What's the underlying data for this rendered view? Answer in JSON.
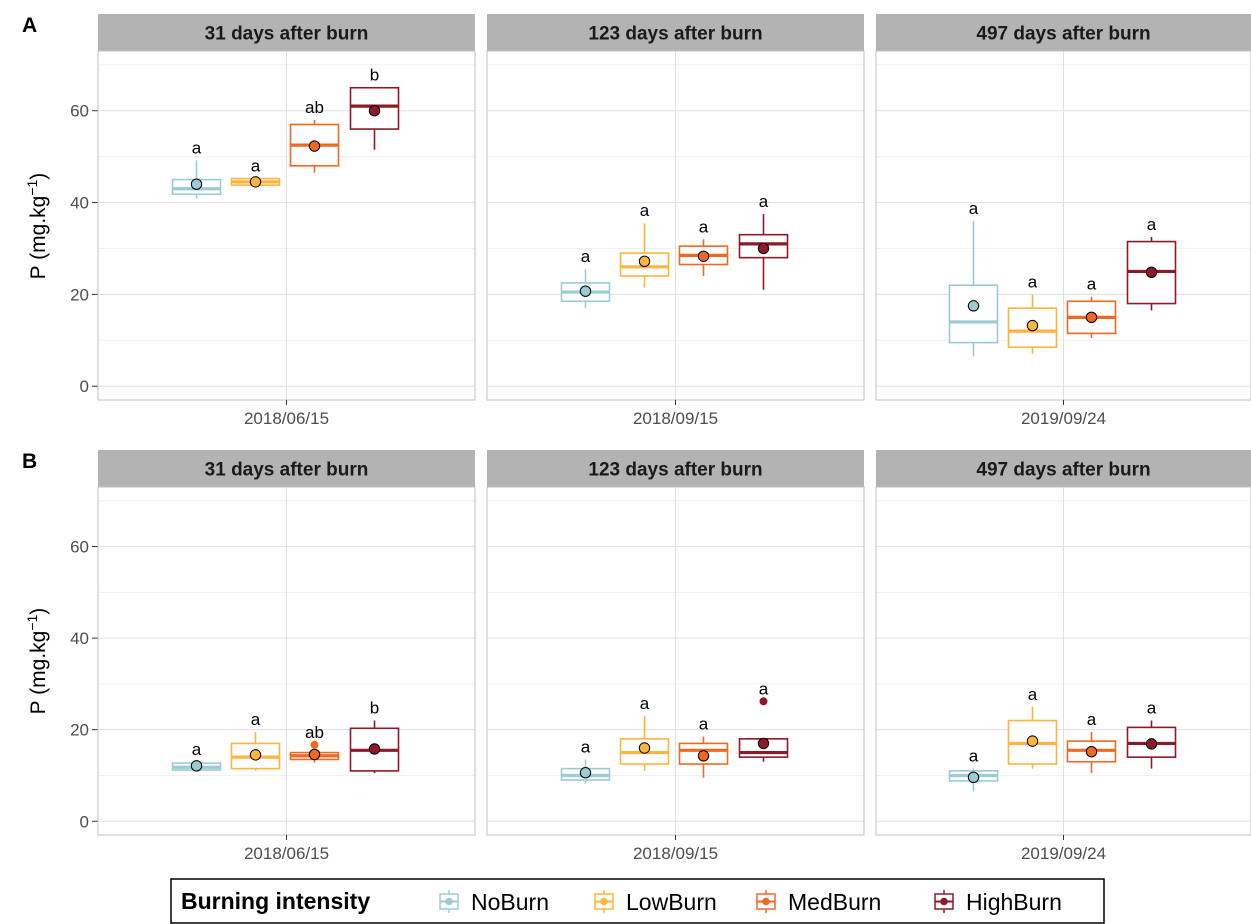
{
  "chart_data": {
    "type": "box",
    "legend": {
      "title": "Burning intensity",
      "position": "bottom",
      "entries": [
        "NoBurn",
        "LowBurn",
        "MedBurn",
        "HighBurn"
      ]
    },
    "colors": {
      "NoBurn": "#9ccbd6",
      "LowBurn": "#fdb53d",
      "MedBurn": "#ee6a24",
      "HighBurn": "#8c1a2b",
      "strip": "#b3b3b3",
      "grid": "#e0e0e0",
      "panel_border": "#c0c0c0"
    },
    "ylim": [
      -3,
      73
    ],
    "y_ticks": [
      0,
      20,
      40,
      60
    ],
    "grid": true,
    "rows": [
      {
        "tag": "A",
        "ylabel": "P (mg.kg",
        "ylabel_sup": "−1",
        "ylabel_end": ")",
        "panels": [
          {
            "title": "31 days after burn",
            "x_label": "2018/06/15",
            "groups": [
              {
                "name": "NoBurn",
                "min": 40.8,
                "q1": 41.8,
                "median": 43.0,
                "q3": 45.0,
                "max": 49.2,
                "mean": 44.0,
                "label": "a",
                "outliers": []
              },
              {
                "name": "LowBurn",
                "min": 43.8,
                "q1": 43.8,
                "median": 44.5,
                "q3": 45.2,
                "max": 45.2,
                "mean": 44.5,
                "label": "a",
                "outliers": []
              },
              {
                "name": "MedBurn",
                "min": 46.5,
                "q1": 48.0,
                "median": 52.5,
                "q3": 57.0,
                "max": 58.0,
                "mean": 52.3,
                "label": "ab",
                "outliers": []
              },
              {
                "name": "HighBurn",
                "min": 51.5,
                "q1": 56.0,
                "median": 61.0,
                "q3": 65.0,
                "max": 65.0,
                "mean": 60.0,
                "label": "b",
                "outliers": []
              }
            ]
          },
          {
            "title": "123 days after burn",
            "x_label": "2018/09/15",
            "groups": [
              {
                "name": "NoBurn",
                "min": 17.0,
                "q1": 18.5,
                "median": 20.5,
                "q3": 22.5,
                "max": 25.5,
                "mean": 20.7,
                "label": "a",
                "outliers": []
              },
              {
                "name": "LowBurn",
                "min": 21.5,
                "q1": 24.0,
                "median": 26.0,
                "q3": 29.0,
                "max": 35.5,
                "mean": 27.2,
                "label": "a",
                "outliers": []
              },
              {
                "name": "MedBurn",
                "min": 24.0,
                "q1": 26.5,
                "median": 28.5,
                "q3": 30.5,
                "max": 32.0,
                "mean": 28.3,
                "label": "a",
                "outliers": []
              },
              {
                "name": "HighBurn",
                "min": 21.0,
                "q1": 28.0,
                "median": 31.0,
                "q3": 33.0,
                "max": 37.5,
                "mean": 30.0,
                "label": "a",
                "outliers": []
              }
            ]
          },
          {
            "title": "497 days after burn",
            "x_label": "2019/09/24",
            "groups": [
              {
                "name": "NoBurn",
                "min": 6.5,
                "q1": 9.5,
                "median": 14.0,
                "q3": 22.0,
                "max": 36.0,
                "mean": 17.5,
                "label": "a",
                "outliers": []
              },
              {
                "name": "LowBurn",
                "min": 7.0,
                "q1": 8.5,
                "median": 12.0,
                "q3": 17.0,
                "max": 20.0,
                "mean": 13.2,
                "label": "a",
                "outliers": []
              },
              {
                "name": "MedBurn",
                "min": 10.5,
                "q1": 11.5,
                "median": 15.0,
                "q3": 18.5,
                "max": 19.5,
                "mean": 15.0,
                "label": "a",
                "outliers": []
              },
              {
                "name": "HighBurn",
                "min": 16.5,
                "q1": 18.0,
                "median": 25.0,
                "q3": 31.5,
                "max": 32.5,
                "mean": 24.8,
                "label": "a",
                "outliers": []
              }
            ]
          }
        ]
      },
      {
        "tag": "B",
        "ylabel": "P (mg.kg",
        "ylabel_sup": "−1",
        "ylabel_end": ")",
        "panels": [
          {
            "title": "31 days after burn",
            "x_label": "2018/06/15",
            "groups": [
              {
                "name": "NoBurn",
                "min": 11.0,
                "q1": 11.2,
                "median": 11.8,
                "q3": 12.7,
                "max": 12.9,
                "mean": 12.1,
                "label": "a",
                "outliers": []
              },
              {
                "name": "LowBurn",
                "min": 11.0,
                "q1": 11.5,
                "median": 14.0,
                "q3": 17.0,
                "max": 19.5,
                "mean": 14.5,
                "label": "a",
                "outliers": []
              },
              {
                "name": "MedBurn",
                "min": 12.8,
                "q1": 13.5,
                "median": 14.3,
                "q3": 15.0,
                "max": 15.2,
                "mean": 14.6,
                "label": "ab",
                "outliers": [
                  16.7
                ]
              },
              {
                "name": "HighBurn",
                "min": 10.5,
                "q1": 11.0,
                "median": 15.5,
                "q3": 20.3,
                "max": 22.0,
                "mean": 15.8,
                "label": "b",
                "outliers": []
              }
            ]
          },
          {
            "title": "123 days after burn",
            "x_label": "2018/09/15",
            "groups": [
              {
                "name": "NoBurn",
                "min": 8.2,
                "q1": 9.0,
                "median": 10.0,
                "q3": 11.5,
                "max": 13.5,
                "mean": 10.6,
                "label": "a",
                "outliers": []
              },
              {
                "name": "LowBurn",
                "min": 11.0,
                "q1": 12.5,
                "median": 15.0,
                "q3": 18.0,
                "max": 23.0,
                "mean": 16.0,
                "label": "a",
                "outliers": []
              },
              {
                "name": "MedBurn",
                "min": 9.5,
                "q1": 12.5,
                "median": 15.5,
                "q3": 17.0,
                "max": 18.5,
                "mean": 14.3,
                "label": "a",
                "outliers": []
              },
              {
                "name": "HighBurn",
                "min": 13.0,
                "q1": 14.0,
                "median": 15.0,
                "q3": 18.0,
                "max": 18.0,
                "mean": 17.0,
                "label": "a",
                "outliers": [
                  26.2
                ]
              }
            ]
          },
          {
            "title": "497 days after burn",
            "x_label": "2019/09/24",
            "groups": [
              {
                "name": "NoBurn",
                "min": 6.5,
                "q1": 8.8,
                "median": 10.0,
                "q3": 11.0,
                "max": 11.5,
                "mean": 9.6,
                "label": "a",
                "outliers": []
              },
              {
                "name": "LowBurn",
                "min": 11.5,
                "q1": 12.5,
                "median": 17.0,
                "q3": 22.0,
                "max": 25.0,
                "mean": 17.5,
                "label": "a",
                "outliers": []
              },
              {
                "name": "MedBurn",
                "min": 10.5,
                "q1": 13.0,
                "median": 15.5,
                "q3": 17.5,
                "max": 19.5,
                "mean": 15.2,
                "label": "a",
                "outliers": []
              },
              {
                "name": "HighBurn",
                "min": 11.5,
                "q1": 14.0,
                "median": 17.0,
                "q3": 20.5,
                "max": 22.0,
                "mean": 16.9,
                "label": "a",
                "outliers": []
              }
            ]
          }
        ]
      }
    ]
  }
}
